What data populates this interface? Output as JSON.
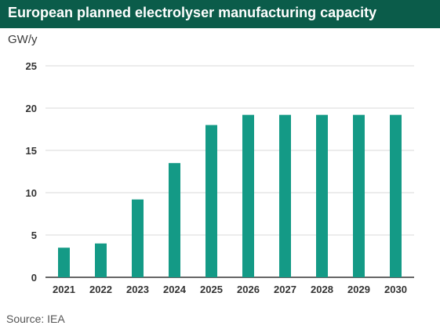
{
  "header": {
    "title": "European planned electrolyser manufacturing capacity"
  },
  "unit_label": "GW/y",
  "source": "Source: IEA",
  "colors": {
    "header_bg": "#0b5c4a",
    "bar": "#149a86",
    "grid": "#d9d9d9"
  },
  "chart_data": {
    "type": "bar",
    "title": "European planned electrolyser manufacturing capacity",
    "ylabel": "GW/y",
    "categories": [
      "2021",
      "2022",
      "2023",
      "2024",
      "2025",
      "2026",
      "2027",
      "2028",
      "2029",
      "2030"
    ],
    "values": [
      3.5,
      4.0,
      9.2,
      13.5,
      18.0,
      19.2,
      19.2,
      19.2,
      19.2,
      19.2
    ],
    "ylim": [
      0,
      25
    ],
    "yticks": [
      0,
      5,
      10,
      15,
      20,
      25
    ],
    "grid": true
  }
}
